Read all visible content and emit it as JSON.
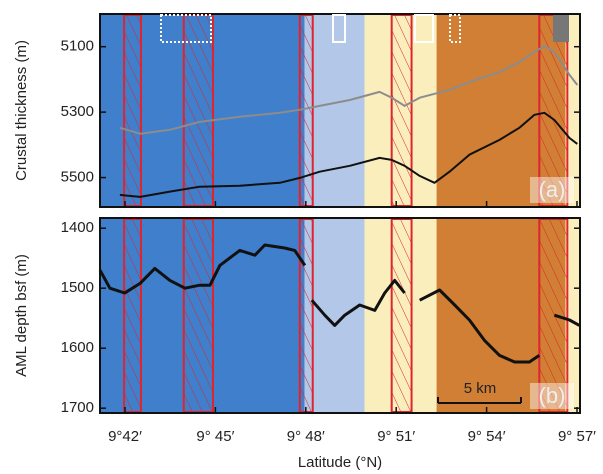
{
  "chart_data": [
    {
      "type": "line",
      "ylabel": "Crustal thickness (m)",
      "panel_label": "(a)",
      "y_inverted": true,
      "xlim": [
        41.17,
        57.1
      ],
      "ylim": [
        5000,
        5590
      ],
      "yticks": [
        5100,
        5300,
        5500
      ],
      "regions": [
        {
          "range": [
            41.17,
            47.96
          ],
          "color": "#3f7fcb"
        },
        {
          "range": [
            47.96,
            49.95
          ],
          "color": "#b3c8e8"
        },
        {
          "range": [
            49.95,
            52.34
          ],
          "color": "#fbeebd"
        },
        {
          "range": [
            52.34,
            56.62
          ],
          "color": "#d07f34"
        },
        {
          "range": [
            56.62,
            57.1
          ],
          "color": "#fbeebd"
        }
      ],
      "highlights": [
        [
          41.97,
          42.53
        ],
        [
          43.95,
          44.92
        ],
        [
          47.8,
          48.23
        ],
        [
          50.85,
          51.51
        ],
        [
          55.75,
          56.68
        ]
      ],
      "highlight_color": "#e0242e",
      "x": [
        41.83,
        42.5,
        43.49,
        44.48,
        45.81,
        47.14,
        47.8,
        48.46,
        49.46,
        50.45,
        50.85,
        51.28,
        51.78,
        52.27,
        52.77,
        53.43,
        54.43,
        55.09,
        55.59,
        55.92,
        56.25,
        56.75,
        57.01
      ],
      "series": [
        {
          "color": "#8c8c8c",
          "values": [
            5348,
            5366,
            5354,
            5330,
            5314,
            5302,
            5293,
            5281,
            5263,
            5238,
            5256,
            5281,
            5256,
            5244,
            5232,
            5208,
            5177,
            5147,
            5116,
            5098,
            5116,
            5186,
            5217
          ]
        },
        {
          "color": "#111111",
          "values": [
            5553,
            5559,
            5543,
            5528,
            5525,
            5516,
            5501,
            5482,
            5464,
            5440,
            5446,
            5464,
            5495,
            5516,
            5482,
            5430,
            5385,
            5348,
            5308,
            5302,
            5324,
            5379,
            5397
          ]
        }
      ]
    },
    {
      "type": "line",
      "ylabel": "AML depth bsf (m)",
      "xlabel": "Latitude (°N)",
      "panel_label": "(b)",
      "scale_label": "5 km",
      "y_inverted": true,
      "xlim": [
        41.17,
        57.1
      ],
      "ylim": [
        1383,
        1708
      ],
      "yticks": [
        1400,
        1500,
        1600,
        1700
      ],
      "xticks": [
        {
          "value": 42,
          "label": "9°42′"
        },
        {
          "value": 45,
          "label": "9° 45′"
        },
        {
          "value": 48,
          "label": "9° 48′"
        },
        {
          "value": 51,
          "label": "9° 51′"
        },
        {
          "value": 54,
          "label": "9° 54′"
        },
        {
          "value": 57,
          "label": "9° 57′"
        }
      ],
      "x": [
        41.17,
        41.5,
        41.99,
        42.5,
        42.99,
        43.49,
        43.99,
        44.48,
        44.82,
        45.15,
        45.81,
        46.31,
        46.64,
        47.3,
        47.63,
        47.97,
        48.07,
        48.2,
        48.63,
        48.96,
        49.29,
        49.79,
        50.29,
        50.62,
        50.95,
        51.28,
        51.51,
        51.78,
        52.44,
        52.94,
        53.43,
        53.93,
        54.43,
        54.93,
        55.42,
        55.75,
        56.02,
        56.25,
        56.75,
        57.08
      ],
      "series": [
        {
          "color": "#111111",
          "values": [
            1470,
            1500,
            1508,
            1492,
            1467,
            1487,
            1500,
            1495,
            1495,
            1462,
            1437,
            1445,
            1428,
            1433,
            1437,
            1462,
            null,
            1520,
            1545,
            1562,
            1545,
            1528,
            1537,
            1508,
            1487,
            1508,
            null,
            1520,
            1503,
            1528,
            1553,
            1587,
            1612,
            1623,
            1623,
            1612,
            null,
            1545,
            1553,
            1562
          ]
        }
      ]
    }
  ]
}
